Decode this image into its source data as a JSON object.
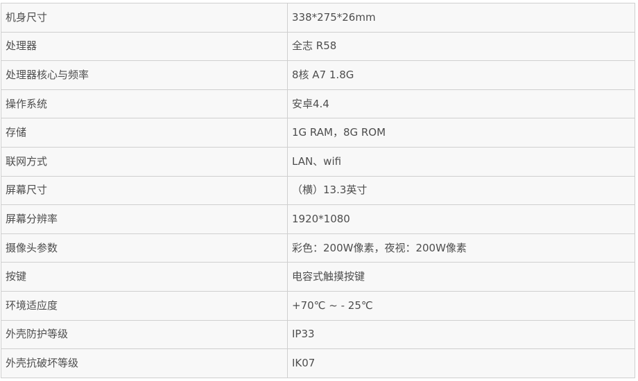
{
  "table": {
    "name": "product-spec-table",
    "columns": [
      "label",
      "value"
    ],
    "rows": [
      {
        "label": "机身尺寸",
        "value": "338*275*26mm"
      },
      {
        "label": "处理器",
        "value": "全志 R58"
      },
      {
        "label": "处理器核心与频率",
        "value": "8核 A7 1.8G"
      },
      {
        "label": "操作系统",
        "value": "安卓4.4"
      },
      {
        "label": "存储",
        "value": "1G RAM，8G ROM"
      },
      {
        "label": "联网方式",
        "value": "LAN、wifi"
      },
      {
        "label": "屏幕尺寸",
        "value": "（横）13.3英寸"
      },
      {
        "label": "屏幕分辨率",
        "value": "1920*1080"
      },
      {
        "label": "摄像头参数",
        "value": "彩色：200W像素，夜视：200W像素"
      },
      {
        "label": "按键",
        "value": "电容式触摸按键"
      },
      {
        "label": "环境适应度",
        "value": "+70℃ ~ - 25℃"
      },
      {
        "label": "外壳防护等级",
        "value": "IP33"
      },
      {
        "label": "外壳抗破坏等级",
        "value": "IK07"
      }
    ],
    "colors": {
      "cell_background": "#f8f8f8",
      "border": "#cfcfcf",
      "text": "#4d4d4d",
      "page_background": "#ffffff"
    }
  }
}
